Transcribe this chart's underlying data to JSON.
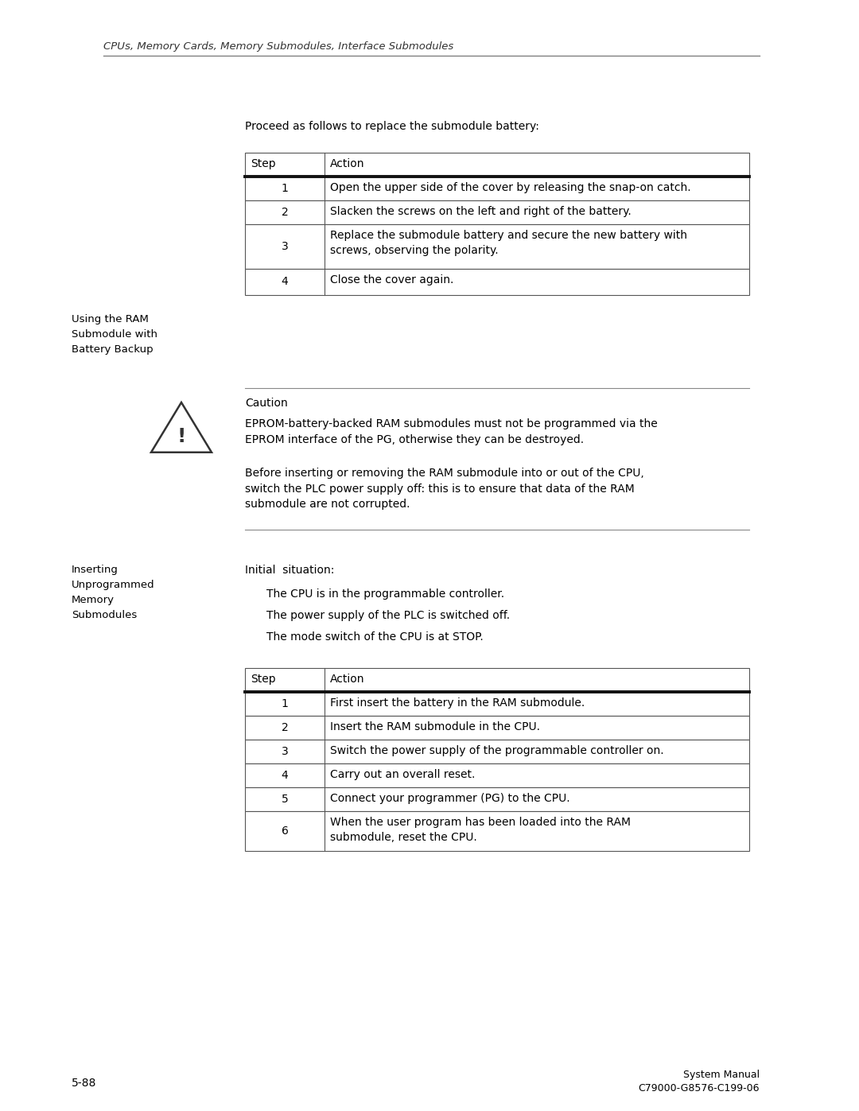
{
  "bg_color": "#ffffff",
  "text_color": "#000000",
  "header_italic": "CPUs, Memory Cards, Memory Submodules, Interface Submodules",
  "page_number": "5-88",
  "footer_right_line1": "System Manual",
  "footer_right_line2": "C79000-G8576-C199-06",
  "proceed_text": "Proceed as follows to replace the submodule battery:",
  "table1_headers": [
    "Step",
    "Action"
  ],
  "table1_rows": [
    [
      "1",
      "Open the upper side of the cover by releasing the snap-on catch."
    ],
    [
      "2",
      "Slacken the screws on the left and right of the battery."
    ],
    [
      "3",
      "Replace the submodule battery and secure the new battery with\nscrews, observing the polarity."
    ],
    [
      "4",
      "Close the cover again."
    ]
  ],
  "sidebar1_text": "Using the RAM\nSubmodule with\nBattery Backup",
  "caution_label": "Caution",
  "caution_text1": "EPROM-battery-backed RAM submodules must not be programmed via the\nEPROM interface of the PG, otherwise they can be destroyed.",
  "caution_text2": "Before inserting or removing the RAM submodule into or out of the CPU,\nswitch the PLC power supply off: this is to ensure that data of the RAM\nsubmodule are not corrupted.",
  "sidebar2_text": "Inserting\nUnprogrammed\nMemory\nSubmodules",
  "initial_text": "Initial  situation:",
  "initial_bullets": [
    "The CPU is in the programmable controller.",
    "The power supply of the PLC is switched off.",
    "The mode switch of the CPU is at STOP."
  ],
  "table2_headers": [
    "Step",
    "Action"
  ],
  "table2_rows": [
    [
      "1",
      "First insert the battery in the RAM submodule."
    ],
    [
      "2",
      "Insert the RAM submodule in the CPU."
    ],
    [
      "3",
      "Switch the power supply of the programmable controller on."
    ],
    [
      "4",
      "Carry out an overall reset."
    ],
    [
      "5",
      "Connect your programmer (PG) to the CPU."
    ],
    [
      "6",
      "When the user program has been loaded into the RAM\nsubmodule, reset the CPU."
    ]
  ]
}
